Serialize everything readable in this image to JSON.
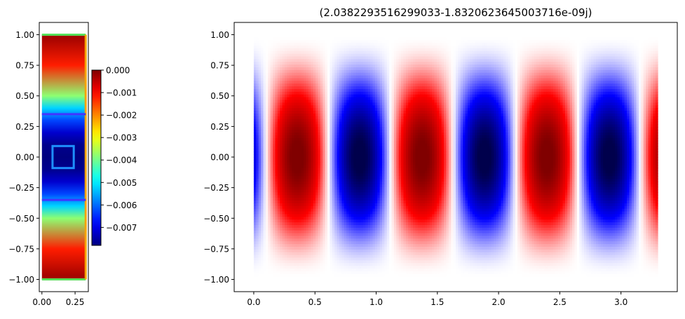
{
  "chart_data": [
    {
      "type": "heatmap",
      "title": "",
      "xlabel": "",
      "ylabel": "",
      "xlim": [
        -0.02,
        0.35
      ],
      "ylim": [
        -1.1,
        1.1
      ],
      "x_ticks": [
        0.0,
        0.25
      ],
      "x_tick_labels": [
        "0.00",
        "0.25"
      ],
      "y_ticks": [
        1.0,
        0.75,
        0.5,
        0.25,
        0.0,
        -0.25,
        -0.5,
        -0.75,
        -1.0
      ],
      "y_tick_labels": [
        "1.00",
        "0.75",
        "0.50",
        "0.25",
        "0.00",
        "−0.25",
        "−0.50",
        "−0.75",
        "−1.00"
      ],
      "colormap": "jet",
      "value_range": [
        -0.0078,
        0.0
      ],
      "field_extent": {
        "x": [
          0.0,
          0.33
        ],
        "y": [
          -1.0,
          1.0
        ]
      },
      "field_profile_y": [
        -1.0,
        -0.75,
        -0.5,
        -0.4,
        -0.3,
        -0.2,
        -0.1,
        0.0,
        0.1,
        0.2,
        0.3,
        0.4,
        0.5,
        0.75,
        1.0
      ],
      "field_profile_value": [
        -0.0002,
        -0.0012,
        -0.0038,
        -0.0052,
        -0.0063,
        -0.0072,
        -0.0077,
        -0.0078,
        -0.0077,
        -0.0072,
        -0.0063,
        -0.0052,
        -0.0038,
        -0.0012,
        -0.0002
      ],
      "overlays": [
        {
          "name": "top-boundary",
          "kind": "line",
          "x": [
            0.0,
            0.33
          ],
          "y": [
            1.0,
            1.0
          ],
          "color": "#55e05a"
        },
        {
          "name": "bottom-boundary",
          "kind": "line",
          "x": [
            0.0,
            0.33
          ],
          "y": [
            -1.0,
            -1.0
          ],
          "color": "#55e05a"
        },
        {
          "name": "right-boundary",
          "kind": "line",
          "x": [
            0.33,
            0.33
          ],
          "y": [
            -1.0,
            1.0
          ],
          "color": "#f5a300"
        },
        {
          "name": "upper-interface",
          "kind": "line",
          "x": [
            0.0,
            0.33
          ],
          "y": [
            0.35,
            0.35
          ],
          "color": "#4433ff"
        },
        {
          "name": "lower-interface",
          "kind": "line",
          "x": [
            0.0,
            0.33
          ],
          "y": [
            -0.35,
            -0.35
          ],
          "color": "#4433ff"
        },
        {
          "name": "inner-square",
          "kind": "rect",
          "x": [
            0.08,
            0.24
          ],
          "y": [
            -0.09,
            0.09
          ],
          "color": "#1e90ff"
        }
      ],
      "colorbar": {
        "ticks": [
          0.0,
          -0.001,
          -0.002,
          -0.003,
          -0.004,
          -0.005,
          -0.006,
          -0.007
        ],
        "tick_labels": [
          "0.000",
          "−0.001",
          "−0.002",
          "−0.003",
          "−0.004",
          "−0.005",
          "−0.006",
          "−0.007"
        ]
      }
    },
    {
      "type": "heatmap",
      "title": "(2.0382293516299033-1.8320623645003716e-09j)",
      "xlabel": "",
      "ylabel": "",
      "xlim": [
        -0.16,
        3.46
      ],
      "ylim": [
        -1.1,
        1.1
      ],
      "x_ticks": [
        0.0,
        0.5,
        1.0,
        1.5,
        2.0,
        2.5,
        3.0
      ],
      "x_tick_labels": [
        "0.0",
        "0.5",
        "1.0",
        "1.5",
        "2.0",
        "2.5",
        "3.0"
      ],
      "y_ticks": [
        1.0,
        0.75,
        0.5,
        0.25,
        0.0,
        -0.25,
        -0.5,
        -0.75,
        -1.0
      ],
      "y_tick_labels": [
        "1.00",
        "0.75",
        "0.50",
        "0.25",
        "0.00",
        "−0.25",
        "−0.50",
        "−0.75",
        "−1.00"
      ],
      "colormap": "seismic",
      "field_extent": {
        "x": [
          0.0,
          3.3
        ],
        "y": [
          -1.0,
          1.0
        ]
      },
      "value_range": [
        -1.0,
        1.0
      ],
      "wave_period": 1.02,
      "wave_phase_zero": 0.1,
      "lobe_centers": [
        {
          "x": 0.0,
          "sign": -1
        },
        {
          "x": 0.35,
          "sign": 1
        },
        {
          "x": 0.86,
          "sign": -1
        },
        {
          "x": 1.37,
          "sign": 1
        },
        {
          "x": 1.88,
          "sign": -1
        },
        {
          "x": 2.39,
          "sign": 1
        },
        {
          "x": 2.9,
          "sign": -1
        },
        {
          "x": 3.3,
          "sign": 1
        }
      ]
    }
  ]
}
